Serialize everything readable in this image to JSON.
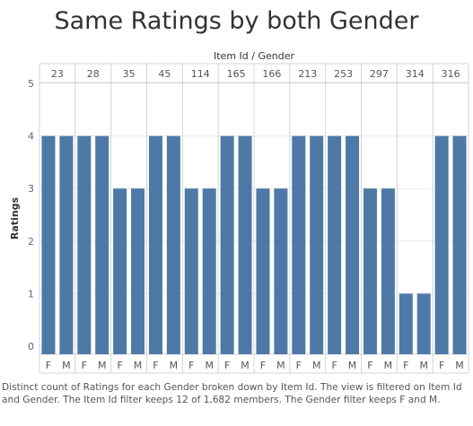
{
  "chart_data": {
    "type": "bar",
    "title": "Same Ratings by both Gender",
    "column_header": "Item Id  /  Gender",
    "ylabel": "Ratings",
    "ylim": [
      0,
      5
    ],
    "yticks": [
      0,
      1,
      2,
      3,
      4,
      5
    ],
    "grid": true,
    "groups": [
      {
        "item": "23",
        "genders": [
          "F",
          "M"
        ],
        "values": [
          4,
          4
        ]
      },
      {
        "item": "28",
        "genders": [
          "F",
          "M"
        ],
        "values": [
          4,
          4
        ]
      },
      {
        "item": "35",
        "genders": [
          "F",
          "M"
        ],
        "values": [
          3,
          3
        ]
      },
      {
        "item": "45",
        "genders": [
          "F",
          "M"
        ],
        "values": [
          4,
          4
        ]
      },
      {
        "item": "114",
        "genders": [
          "F",
          "M"
        ],
        "values": [
          3,
          3
        ]
      },
      {
        "item": "165",
        "genders": [
          "F",
          "M"
        ],
        "values": [
          4,
          4
        ]
      },
      {
        "item": "166",
        "genders": [
          "F",
          "M"
        ],
        "values": [
          3,
          3
        ]
      },
      {
        "item": "213",
        "genders": [
          "F",
          "M"
        ],
        "values": [
          4,
          4
        ]
      },
      {
        "item": "253",
        "genders": [
          "F",
          "M"
        ],
        "values": [
          4,
          4
        ]
      },
      {
        "item": "297",
        "genders": [
          "F",
          "M"
        ],
        "values": [
          3,
          3
        ]
      },
      {
        "item": "314",
        "genders": [
          "F",
          "M"
        ],
        "values": [
          1,
          1
        ]
      },
      {
        "item": "316",
        "genders": [
          "F",
          "M"
        ],
        "values": [
          4,
          4
        ]
      }
    ],
    "bar_color": "#4e79a7",
    "caption": "Distinct count of Ratings for each Gender broken down by Item Id.  The view is filtered on Item Id and Gender. The Item Id filter keeps 12 of 1,682 members. The Gender filter keeps F and M."
  }
}
